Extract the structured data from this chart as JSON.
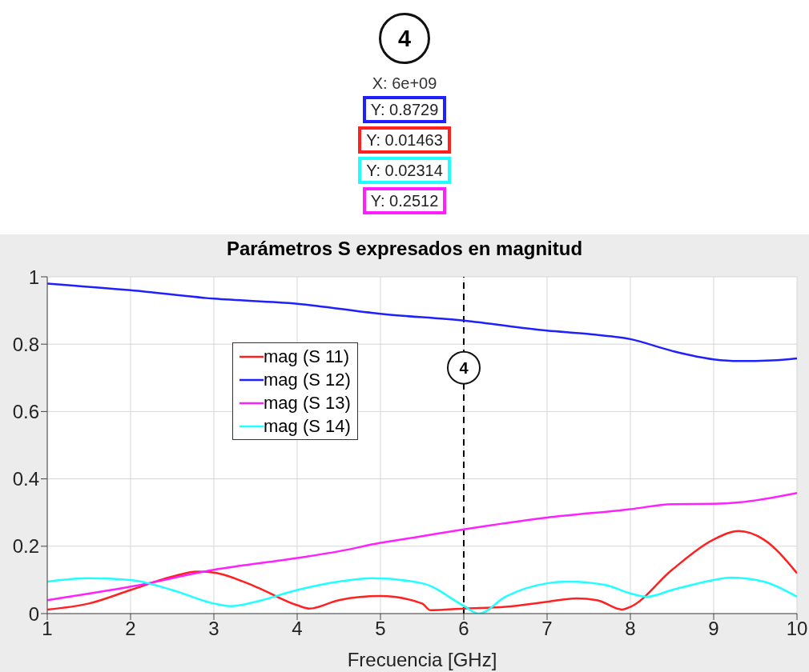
{
  "chart_data": {
    "type": "line",
    "title": "Parámetros S expresados en magnitud",
    "xlabel": "Frecuencia [GHz]",
    "xlim": [
      1,
      10
    ],
    "xticks": [
      1,
      2,
      3,
      4,
      5,
      6,
      7,
      8,
      9,
      10
    ],
    "ylim": [
      0,
      1
    ],
    "yticks": [
      0,
      0.2,
      0.4,
      0.6,
      0.8,
      1
    ],
    "grid": true,
    "legend": "left",
    "line_style": "solid",
    "marker": "none",
    "series": [
      {
        "name": "mag (S 11)",
        "color": "#ff2020",
        "x": [
          1,
          1.5,
          2,
          2.5,
          2.8,
          3,
          3.5,
          4,
          4.15,
          4.5,
          5,
          5.5,
          5.6,
          6,
          6.5,
          7,
          7.35,
          7.6,
          7.9,
          8,
          8.5,
          9,
          9.3,
          9.6,
          10
        ],
        "values": [
          0.012,
          0.03,
          0.07,
          0.11,
          0.125,
          0.122,
          0.08,
          0.025,
          0.015,
          0.04,
          0.052,
          0.03,
          0.01,
          0.015,
          0.02,
          0.035,
          0.045,
          0.04,
          0.012,
          0.02,
          0.13,
          0.22,
          0.245,
          0.22,
          0.12
        ]
      },
      {
        "name": "mag (S 12)",
        "color": "#2020ff",
        "x": [
          1,
          2,
          3,
          4,
          5,
          6,
          7,
          7.5,
          8,
          8.5,
          9,
          9.3,
          9.7,
          10
        ],
        "values": [
          0.98,
          0.96,
          0.935,
          0.92,
          0.89,
          0.87,
          0.84,
          0.83,
          0.815,
          0.78,
          0.755,
          0.75,
          0.752,
          0.758
        ]
      },
      {
        "name": "mag (S 13)",
        "color": "#ff20ff",
        "x": [
          1,
          2,
          3,
          4,
          4.5,
          5,
          5.5,
          6,
          7,
          8,
          8.5,
          9,
          9.3,
          10
        ],
        "values": [
          0.04,
          0.08,
          0.13,
          0.165,
          0.185,
          0.21,
          0.23,
          0.25,
          0.285,
          0.31,
          0.325,
          0.326,
          0.33,
          0.358
        ]
      },
      {
        "name": "mag (S 14)",
        "color": "#20ffff",
        "x": [
          1,
          1.5,
          2,
          2.5,
          3,
          3.2,
          3.5,
          4,
          4.5,
          4.9,
          5.5,
          6,
          6.18,
          6.5,
          7,
          7.25,
          7.7,
          8,
          8.2,
          8.5,
          9,
          9.2,
          9.6,
          10
        ],
        "values": [
          0.095,
          0.105,
          0.1,
          0.07,
          0.03,
          0.022,
          0.035,
          0.07,
          0.095,
          0.105,
          0.09,
          0.023,
          0,
          0.05,
          0.09,
          0.095,
          0.085,
          0.06,
          0.05,
          0.07,
          0.1,
          0.107,
          0.095,
          0.05
        ]
      }
    ],
    "ref_lines": [
      {
        "axis": "x",
        "value": 6,
        "color": "#000000",
        "line_style": "dashed"
      }
    ],
    "annotations": [
      "4",
      "X: 6e+09",
      "Y: 0.8729",
      "Y: 0.01463",
      "Y: 0.02314",
      "Y: 0.2512",
      {
        "text": "4",
        "x": 6,
        "y": 0.73
      }
    ]
  }
}
